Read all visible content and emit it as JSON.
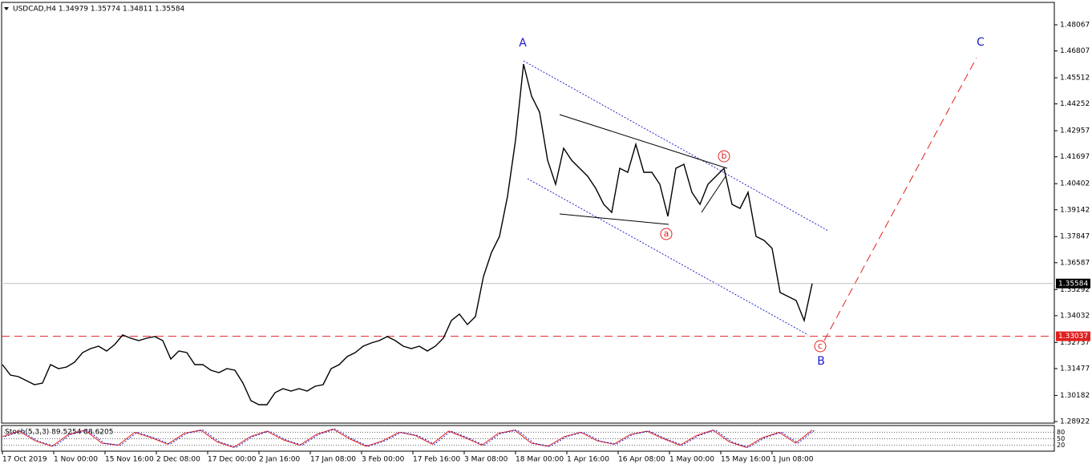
{
  "chart_data": {
    "type": "line",
    "title": "USDCAD,H4  1.34979 1.35774 1.34811 1.35584",
    "x_labels": [
      "17 Oct 2019",
      "1 Nov 00:00",
      "15 Nov 16:00",
      "2 Dec 08:00",
      "17 Dec 00:00",
      "2 Jan 16:00",
      "17 Jan 08:00",
      "3 Feb 00:00",
      "17 Feb 16:00",
      "3 Mar 08:00",
      "18 Mar 00:00",
      "1 Apr 16:00",
      "16 Apr 08:00",
      "1 May 00:00",
      "15 May 16:00",
      "1 Jun 08:00"
    ],
    "series": [
      {
        "name": "USDCAD",
        "color": "#000000",
        "values": [
          1.31668,
          1.31165,
          1.31088,
          1.30894,
          1.30701,
          1.30778,
          1.31668,
          1.31475,
          1.31552,
          1.31784,
          1.32248,
          1.32441,
          1.32558,
          1.32325,
          1.32635,
          1.33099,
          1.32944,
          1.32828,
          1.32944,
          1.33022,
          1.32828,
          1.31939,
          1.32325,
          1.32248,
          1.31668,
          1.31668,
          1.31397,
          1.31281,
          1.31475,
          1.31397,
          1.30778,
          1.29927,
          1.29734,
          1.29734,
          1.30314,
          1.30508,
          1.30392,
          1.30508,
          1.30392,
          1.30624,
          1.30701,
          1.31475,
          1.31668,
          1.32055,
          1.32248,
          1.32558,
          1.32712,
          1.32828,
          1.33022,
          1.32828,
          1.32558,
          1.32441,
          1.32558,
          1.32325,
          1.32558,
          1.32944,
          1.33795,
          1.34105,
          1.33602,
          1.33989,
          1.35922,
          1.37083,
          1.37856,
          1.3979,
          1.42498,
          1.46172,
          1.44625,
          1.43851,
          1.41531,
          1.4037,
          1.42111,
          1.41531,
          1.41144,
          1.40757,
          1.40177,
          1.39403,
          1.39017,
          1.41144,
          1.4095,
          1.42304,
          1.4095,
          1.4095,
          1.4037,
          1.38823,
          1.41144,
          1.41337,
          1.39984,
          1.39403,
          1.4037,
          1.40757,
          1.41144,
          1.39403,
          1.3921,
          1.39984,
          1.37856,
          1.37663,
          1.37276,
          1.35149,
          1.34955,
          1.34762,
          1.33795,
          1.35584
        ]
      }
    ],
    "ylim": [
      1.28845,
      1.4915
    ],
    "yticks": [
      1.48067,
      1.46807,
      1.45512,
      1.44252,
      1.42957,
      1.41697,
      1.40402,
      1.39142,
      1.37847,
      1.36587,
      1.35292,
      1.34032,
      1.32737,
      1.31477,
      1.30182,
      1.28922
    ],
    "current_price": {
      "value": 1.35584,
      "label": "1.35584"
    },
    "level": {
      "value": 1.33037,
      "label": "1.33037"
    },
    "waves": {
      "A": "A",
      "B": "B",
      "C": "C",
      "a": "a",
      "b": "b",
      "c": "c"
    },
    "stochastic": {
      "title": "Stoch(5,3,3) 89.5254 88.6205",
      "ylim": [
        0,
        100
      ],
      "levels": [
        80,
        50,
        20
      ],
      "values": [
        60,
        85,
        40,
        15,
        70,
        90,
        30,
        20,
        80,
        55,
        25,
        75,
        90,
        35,
        10,
        60,
        85,
        45,
        20,
        70,
        95,
        50,
        15,
        40,
        80,
        65,
        25,
        85,
        55,
        20,
        75,
        90,
        30,
        15,
        60,
        80,
        40,
        25,
        70,
        85,
        50,
        20,
        65,
        90,
        35,
        10,
        55,
        80,
        30,
        89.5254
      ]
    }
  }
}
